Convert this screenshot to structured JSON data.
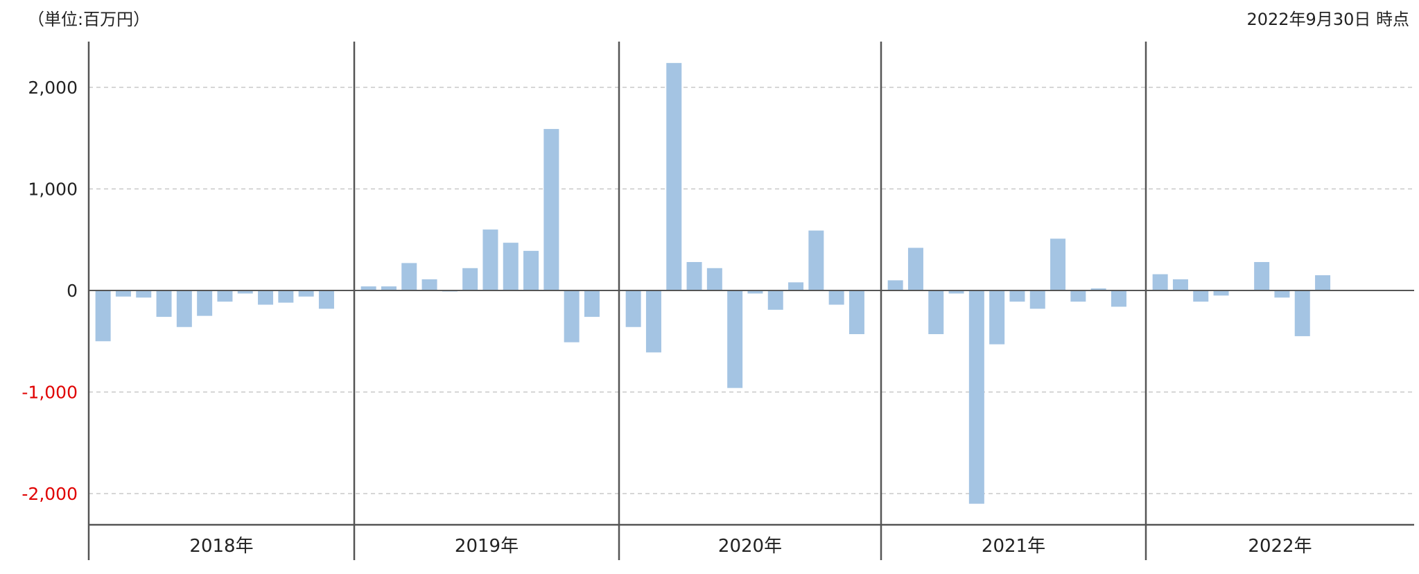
{
  "header": {
    "unit_label": "（単位:百万円）",
    "as_of_label": "2022年9月30日 時点"
  },
  "colors": {
    "bar": "#a4c4e3",
    "grid": "#c8c8c8",
    "axis": "#555555",
    "negative_tick": "#e00000",
    "tick": "#222222"
  },
  "chart_data": {
    "type": "bar",
    "title": "",
    "xlabel": "",
    "ylabel": "",
    "ylim": [
      -2300,
      2450
    ],
    "yticks": [
      2000,
      1000,
      0,
      -1000,
      -2000
    ],
    "ytick_labels": [
      "2,000",
      "1,000",
      "0",
      "-1,000",
      "-2,000"
    ],
    "grid": "horizontal dashed",
    "groups": [
      {
        "label": "2018年",
        "values": [
          -500,
          -60,
          -70,
          -260,
          -360,
          -250,
          -110,
          -30,
          -140,
          -120,
          -60,
          -180
        ]
      },
      {
        "label": "2019年",
        "values": [
          40,
          40,
          270,
          110,
          -10,
          220,
          600,
          470,
          390,
          1590,
          -510,
          -260
        ]
      },
      {
        "label": "2020年",
        "values": [
          -360,
          -610,
          2240,
          280,
          220,
          -960,
          -30,
          -190,
          80,
          590,
          -140,
          -430
        ]
      },
      {
        "label": "2021年",
        "values": [
          100,
          420,
          -430,
          -30,
          -2100,
          -530,
          -110,
          -180,
          510,
          -110,
          20,
          -160
        ]
      },
      {
        "label": "2022年",
        "values": [
          160,
          110,
          -110,
          -50,
          null,
          280,
          -70,
          -450,
          150
        ]
      }
    ]
  }
}
